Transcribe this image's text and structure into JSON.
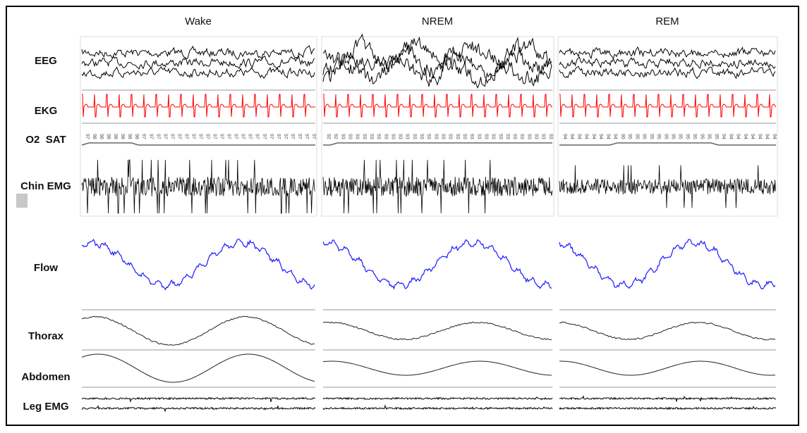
{
  "columns": [
    "Wake",
    "NREM",
    "REM"
  ],
  "rows": [
    "EEG",
    "EKG",
    "O2  SAT",
    "Chin EMG",
    "Flow",
    "Thorax",
    "Abdomen",
    "Leg EMG"
  ],
  "o2_sat": {
    "Wake": [
      97,
      98,
      98,
      98,
      98,
      98,
      98,
      98,
      97,
      97,
      97,
      97,
      97,
      97,
      97,
      97,
      97,
      97,
      97,
      97,
      97,
      97,
      97,
      97,
      97,
      97,
      97,
      97,
      97,
      97,
      97,
      97,
      97
    ],
    "NREM": [
      92,
      92,
      93,
      93,
      93,
      93,
      93,
      93,
      93,
      93,
      93,
      93,
      93,
      93,
      93,
      93,
      93,
      93,
      93,
      93,
      93,
      93,
      93,
      93,
      93,
      93,
      93,
      93,
      93,
      93,
      93,
      93
    ],
    "REM": [
      94,
      94,
      94,
      94,
      94,
      94,
      94,
      94,
      95,
      95,
      95,
      95,
      95,
      95,
      95,
      95,
      95,
      95,
      95,
      95,
      95,
      95,
      94,
      94,
      94,
      94,
      94,
      94,
      94,
      94
    ]
  },
  "colors": {
    "eeg": "#000000",
    "ekg": "#ff0000",
    "flow": "#1a1aff",
    "effort": "#222222"
  }
}
